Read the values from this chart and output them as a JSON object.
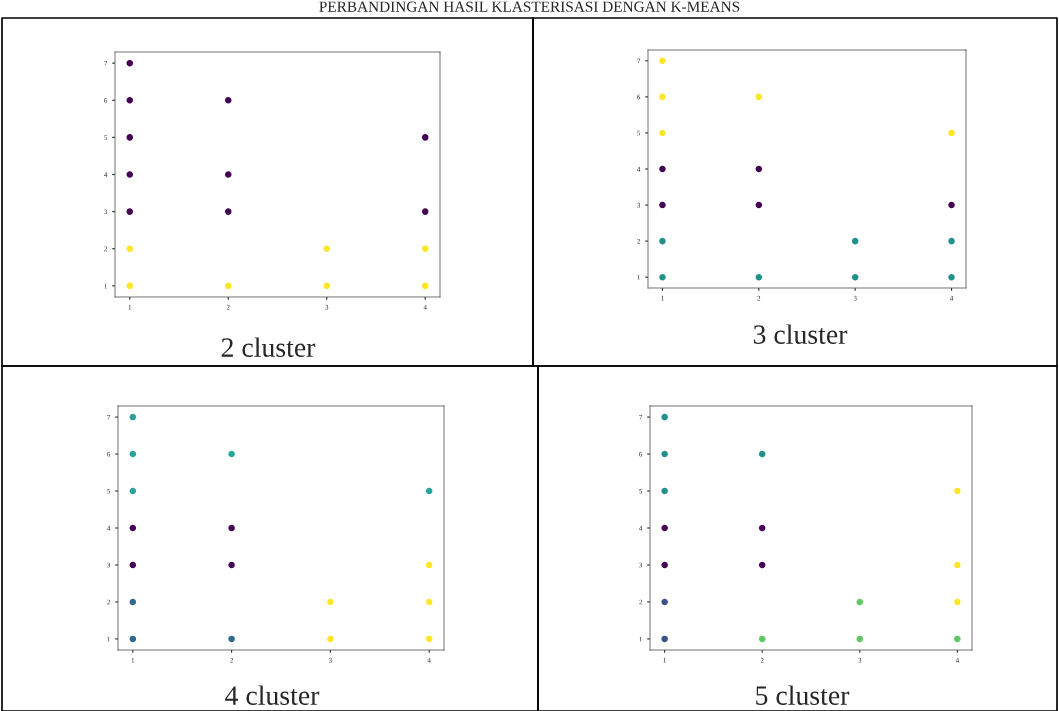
{
  "chart_data": [
    {
      "type": "scatter",
      "title": "PERBANDINGAN HASIL KLASTERISASI DENGAN K-MEANS",
      "annotations": [
        "2 cluster"
      ],
      "xlim": [
        0.85,
        4.15
      ],
      "ylim": [
        0.7,
        7.3
      ],
      "xticks": [
        1,
        2,
        3,
        4
      ],
      "yticks": [
        1,
        2,
        3,
        4,
        5,
        6,
        7
      ],
      "marker": "circle",
      "grid": false,
      "legend": false,
      "series": [
        {
          "color": "#440154",
          "x": [
            1,
            1,
            1,
            1,
            1,
            2,
            2,
            2,
            4,
            4
          ],
          "values": [
            7,
            6,
            5,
            4,
            3,
            6,
            4,
            3,
            5,
            3
          ]
        },
        {
          "color": "#fde725",
          "x": [
            1,
            1,
            2,
            3,
            3,
            4,
            4
          ],
          "values": [
            2,
            1,
            1,
            2,
            1,
            2,
            1
          ]
        }
      ]
    },
    {
      "type": "scatter",
      "annotations": [
        "3 cluster"
      ],
      "xlim": [
        0.85,
        4.15
      ],
      "ylim": [
        0.7,
        7.3
      ],
      "xticks": [
        1,
        2,
        3,
        4
      ],
      "yticks": [
        1,
        2,
        3,
        4,
        5,
        6,
        7
      ],
      "marker": "circle",
      "grid": false,
      "legend": false,
      "series": [
        {
          "color": "#440154",
          "x": [
            1,
            1,
            2,
            2,
            4
          ],
          "values": [
            4,
            3,
            4,
            3,
            3
          ]
        },
        {
          "color": "#21918c",
          "x": [
            1,
            1,
            2,
            3,
            3,
            4,
            4
          ],
          "values": [
            2,
            1,
            1,
            2,
            1,
            2,
            1
          ]
        },
        {
          "color": "#fde725",
          "x": [
            1,
            1,
            1,
            2,
            4
          ],
          "values": [
            7,
            6,
            5,
            6,
            5
          ]
        }
      ]
    },
    {
      "type": "scatter",
      "annotations": [
        "4 cluster"
      ],
      "xlim": [
        0.85,
        4.15
      ],
      "ylim": [
        0.7,
        7.3
      ],
      "xticks": [
        1,
        2,
        3,
        4
      ],
      "yticks": [
        1,
        2,
        3,
        4,
        5,
        6,
        7
      ],
      "marker": "circle",
      "grid": false,
      "legend": false,
      "series": [
        {
          "color": "#440154",
          "x": [
            1,
            1,
            2,
            2
          ],
          "values": [
            4,
            3,
            4,
            3
          ]
        },
        {
          "color": "#31688e",
          "x": [
            1,
            1,
            2
          ],
          "values": [
            2,
            1,
            1
          ]
        },
        {
          "color": "#26a69a",
          "x": [
            1,
            1,
            1,
            2,
            4
          ],
          "values": [
            7,
            6,
            5,
            6,
            5
          ]
        },
        {
          "color": "#fde725",
          "x": [
            3,
            3,
            4,
            4,
            4
          ],
          "values": [
            2,
            1,
            3,
            2,
            1
          ]
        }
      ]
    },
    {
      "type": "scatter",
      "annotations": [
        "5 cluster"
      ],
      "xlim": [
        0.85,
        4.15
      ],
      "ylim": [
        0.7,
        7.3
      ],
      "xticks": [
        1,
        2,
        3,
        4
      ],
      "yticks": [
        1,
        2,
        3,
        4,
        5,
        6,
        7
      ],
      "marker": "circle",
      "grid": false,
      "legend": false,
      "series": [
        {
          "color": "#440154",
          "x": [
            1,
            1,
            2,
            2
          ],
          "values": [
            4,
            3,
            4,
            3
          ]
        },
        {
          "color": "#3b528b",
          "x": [
            1,
            1
          ],
          "values": [
            2,
            1
          ]
        },
        {
          "color": "#21918c",
          "x": [
            1,
            1,
            1,
            2
          ],
          "values": [
            7,
            6,
            5,
            6
          ]
        },
        {
          "color": "#5ec962",
          "x": [
            2,
            3,
            3,
            4
          ],
          "values": [
            1,
            2,
            1,
            1
          ]
        },
        {
          "color": "#fde725",
          "x": [
            4,
            4,
            4
          ],
          "values": [
            5,
            3,
            2
          ]
        }
      ]
    }
  ]
}
